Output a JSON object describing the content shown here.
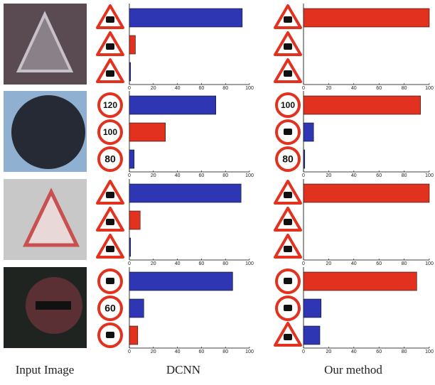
{
  "columns": [
    "Input Image",
    "DCNN",
    "Our method"
  ],
  "chart_data": [
    {
      "type": "bar",
      "categories": [
        null,
        null,
        null
      ],
      "values": [
        94,
        5,
        1
      ],
      "colors": [
        "#2e36b4",
        "#e2321f",
        "#2e36b4"
      ],
      "xlim": [
        0,
        100
      ],
      "xticks": [
        0,
        20,
        40,
        60,
        80,
        100
      ]
    },
    {
      "type": "bar",
      "categories": [
        null,
        null,
        null
      ],
      "values": [
        100,
        0,
        0
      ],
      "colors": [
        "#e2321f",
        "#2e36b4",
        "#2e36b4"
      ],
      "xlim": [
        0,
        100
      ],
      "xticks": [
        0,
        20,
        40,
        60,
        80,
        100
      ]
    },
    {
      "type": "bar",
      "categories": [
        "120",
        "100",
        "80"
      ],
      "values": [
        72,
        30,
        4
      ],
      "colors": [
        "#2e36b4",
        "#e2321f",
        "#2e36b4"
      ],
      "xlim": [
        0,
        100
      ],
      "xticks": [
        0,
        20,
        40,
        60,
        80,
        100
      ]
    },
    {
      "type": "bar",
      "categories": [
        "100",
        null,
        "80"
      ],
      "values": [
        93,
        8,
        1
      ],
      "colors": [
        "#e2321f",
        "#2e36b4",
        "#2e36b4"
      ],
      "xlim": [
        0,
        100
      ],
      "xticks": [
        0,
        20,
        40,
        60,
        80,
        100
      ]
    },
    {
      "type": "bar",
      "categories": [
        null,
        null,
        null
      ],
      "values": [
        93,
        9,
        1
      ],
      "colors": [
        "#2e36b4",
        "#e2321f",
        "#2e36b4"
      ],
      "xlim": [
        0,
        100
      ],
      "xticks": [
        0,
        20,
        40,
        60,
        80,
        100
      ]
    },
    {
      "type": "bar",
      "categories": [
        null,
        null,
        null
      ],
      "values": [
        100,
        0,
        0
      ],
      "colors": [
        "#e2321f",
        "#2e36b4",
        "#2e36b4"
      ],
      "xlim": [
        0,
        100
      ],
      "xticks": [
        0,
        20,
        40,
        60,
        80,
        100
      ]
    },
    {
      "type": "bar",
      "categories": [
        null,
        "60",
        null
      ],
      "values": [
        86,
        12,
        7
      ],
      "colors": [
        "#2e36b4",
        "#2e36b4",
        "#e2321f"
      ],
      "xlim": [
        0,
        100
      ],
      "xticks": [
        0,
        20,
        40,
        60,
        80,
        100
      ]
    },
    {
      "type": "bar",
      "categories": [
        null,
        null,
        null
      ],
      "values": [
        90,
        14,
        13
      ],
      "colors": [
        "#e2321f",
        "#2e36b4",
        "#2e36b4"
      ],
      "xlim": [
        0,
        100
      ],
      "xticks": [
        0,
        20,
        40,
        60,
        80,
        100
      ]
    }
  ]
}
